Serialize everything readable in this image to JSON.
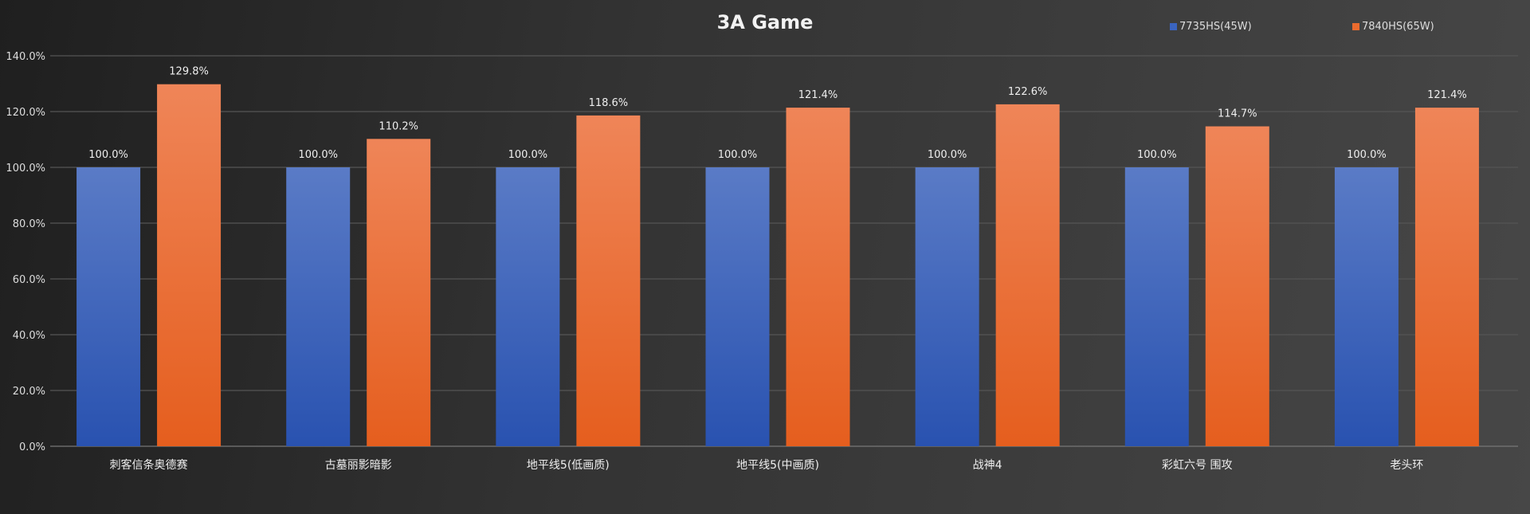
{
  "chart_data": {
    "type": "bar",
    "title": "3A Game",
    "categories": [
      "刺客信条奥德赛",
      "古墓丽影暗影",
      "地平线5(低画质)",
      "地平线5(中画质)",
      "战神4",
      "彩虹六号 围攻",
      "老头环"
    ],
    "series": [
      {
        "name": "7735HS(45W)",
        "color": "#3a64c0",
        "values": [
          100.0,
          100.0,
          100.0,
          100.0,
          100.0,
          100.0,
          100.0
        ],
        "labels": [
          "100.0%",
          "100.0%",
          "100.0%",
          "100.0%",
          "100.0%",
          "100.0%",
          "100.0%"
        ]
      },
      {
        "name": "7840HS(65W)",
        "color": "#ec6b2e",
        "values": [
          129.8,
          110.2,
          118.6,
          121.4,
          122.6,
          114.7,
          121.4
        ],
        "labels": [
          "129.8%",
          "110.2%",
          "118.6%",
          "121.4%",
          "122.6%",
          "114.7%",
          "121.4%"
        ]
      }
    ],
    "ylim": [
      0,
      140
    ],
    "yticks": [
      "0.0%",
      "20.0%",
      "40.0%",
      "60.0%",
      "80.0%",
      "100.0%",
      "120.0%",
      "140.0%"
    ],
    "grid": true,
    "legend": "top-right",
    "xlabel": "",
    "ylabel": ""
  }
}
